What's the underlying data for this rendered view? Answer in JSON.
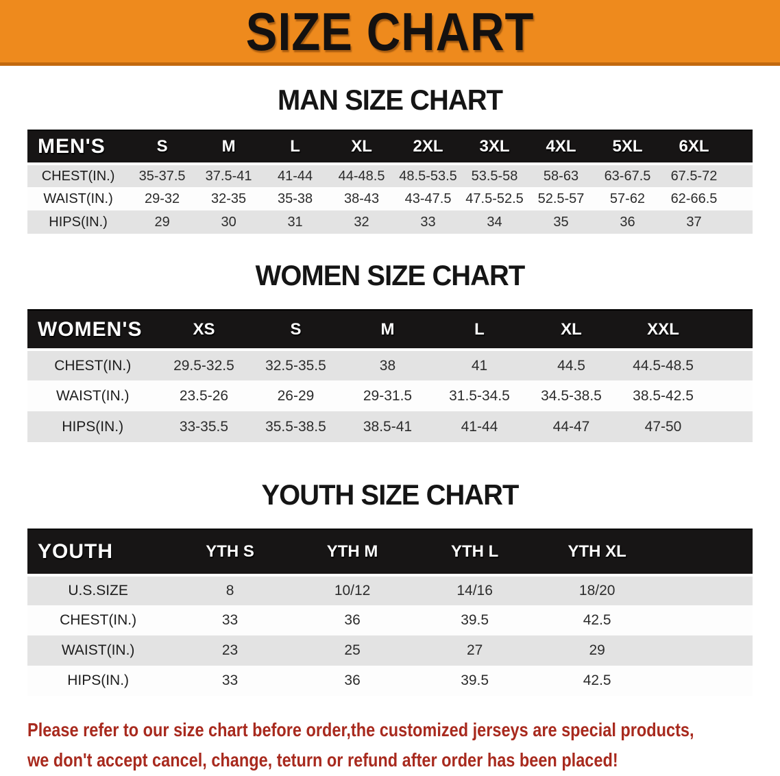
{
  "banner": {
    "title": "SIZE CHART",
    "bg_color": "#EE8A1D",
    "edge_color": "#C2690F"
  },
  "sections": [
    {
      "heading": "MAN SIZE CHART",
      "header_label": "MEN'S",
      "columns": [
        "S",
        "M",
        "L",
        "XL",
        "2XL",
        "3XL",
        "4XL",
        "5XL",
        "6XL"
      ],
      "rows": [
        {
          "label": "CHEST(IN.)",
          "values": [
            "35-37.5",
            "37.5-41",
            "41-44",
            "44-48.5",
            "48.5-53.5",
            "53.5-58",
            "58-63",
            "63-67.5",
            "67.5-72"
          ]
        },
        {
          "label": "WAIST(IN.)",
          "values": [
            "29-32",
            "32-35",
            "35-38",
            "38-43",
            "43-47.5",
            "47.5-52.5",
            "52.5-57",
            "57-62",
            "62-66.5"
          ]
        },
        {
          "label": "HIPS(IN.)",
          "values": [
            "29",
            "30",
            "31",
            "32",
            "33",
            "34",
            "35",
            "36",
            "37"
          ]
        }
      ]
    },
    {
      "heading": "WOMEN SIZE CHART",
      "header_label": "WOMEN'S",
      "columns": [
        "XS",
        "S",
        "M",
        "L",
        "XL",
        "XXL"
      ],
      "rows": [
        {
          "label": "CHEST(IN.)",
          "values": [
            "29.5-32.5",
            "32.5-35.5",
            "38",
            "41",
            "44.5",
            "44.5-48.5"
          ]
        },
        {
          "label": "WAIST(IN.)",
          "values": [
            "23.5-26",
            "26-29",
            "29-31.5",
            "31.5-34.5",
            "34.5-38.5",
            "38.5-42.5"
          ]
        },
        {
          "label": "HIPS(IN.)",
          "values": [
            "33-35.5",
            "35.5-38.5",
            "38.5-41",
            "41-44",
            "44-47",
            "47-50"
          ]
        }
      ]
    },
    {
      "heading": "YOUTH SIZE CHART",
      "header_label": "YOUTH",
      "columns": [
        "YTH S",
        "YTH M",
        "YTH L",
        "YTH XL"
      ],
      "rows": [
        {
          "label": "U.S.SIZE",
          "values": [
            "8",
            "10/12",
            "14/16",
            "18/20"
          ]
        },
        {
          "label": "CHEST(IN.)",
          "values": [
            "33",
            "36",
            "39.5",
            "42.5"
          ]
        },
        {
          "label": "WAIST(IN.)",
          "values": [
            "23",
            "25",
            "27",
            "29"
          ]
        },
        {
          "label": "HIPS(IN.)",
          "values": [
            "33",
            "36",
            "39.5",
            "42.5"
          ]
        }
      ]
    }
  ],
  "table_colors": {
    "header_bg": "#171515",
    "header_text": "#FDFDFD",
    "stripe_gray": "#E3E3E3",
    "row_white": "#FDFDFD"
  },
  "disclaimer": {
    "line1": "Please refer to our size chart before order,the customized jerseys are special products,",
    "line2": "we don't accept cancel, change, teturn or refund after order has been placed!",
    "color": "#A82A1E"
  }
}
